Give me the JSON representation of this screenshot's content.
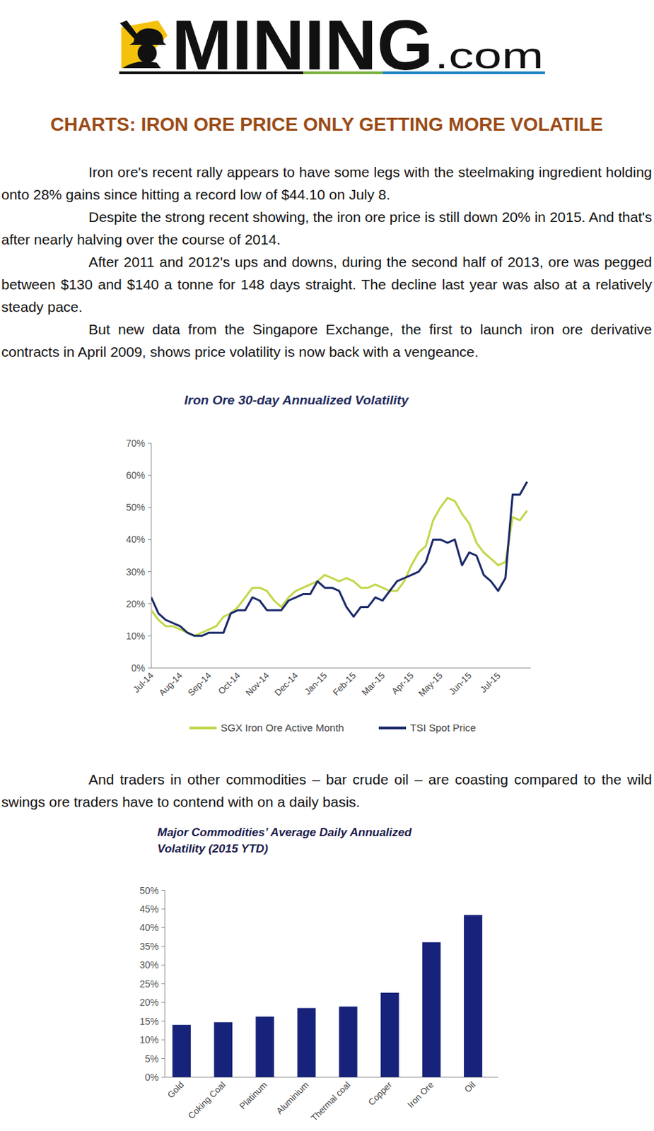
{
  "logo": {
    "text": "MINING",
    "suffix": ".com"
  },
  "title": "CHARTS: IRON ORE PRICE ONLY GETTING MORE VOLATILE",
  "paragraphs": [
    "Iron ore's recent rally appears to have some legs with the steelmaking ingredient holding onto 28% gains since hitting a record low of $44.10 on July 8.",
    "Despite the strong recent showing, the iron ore price is still down 20% in 2015. And that's after nearly halving over the course of 2014.",
    "After 2011 and 2012's ups and downs, during the second half of 2013, ore was pegged between $130 and $140 a tonne for 148 days straight. The decline last year was also at a relatively steady pace.",
    "But new data from the Singapore Exchange, the first to launch iron ore derivative contracts in April 2009, shows price volatility is now back with a vengeance."
  ],
  "closing_paragraph": "And traders in other commodities – bar crude oil – are coasting compared to the wild swings ore traders have to contend with on a daily basis.",
  "chart_data": [
    {
      "type": "line",
      "title": "Iron Ore 30-day Annualized Volatility",
      "categories": [
        "Jul-14",
        null,
        null,
        null,
        "Aug-14",
        null,
        null,
        null,
        "Sep-14",
        null,
        null,
        null,
        "Oct-14",
        null,
        null,
        null,
        "Nov-14",
        null,
        null,
        null,
        "Dec-14",
        null,
        null,
        null,
        "Jan-15",
        null,
        null,
        null,
        "Feb-15",
        null,
        null,
        null,
        "Mar-15",
        null,
        null,
        null,
        "Apr-15",
        null,
        null,
        null,
        "May-15",
        null,
        null,
        null,
        "Jun-15",
        null,
        null,
        null,
        "Jul-15",
        null,
        null,
        null,
        null
      ],
      "series": [
        {
          "name": "SGX Iron Ore Active Month",
          "color": "#c3d64a",
          "values": [
            18,
            15,
            13,
            13,
            12,
            11,
            10,
            11,
            12,
            13,
            16,
            17,
            19,
            22,
            25,
            25,
            24,
            21,
            19,
            22,
            24,
            25,
            26,
            27,
            29,
            28,
            27,
            28,
            27,
            25,
            25,
            26,
            25,
            24,
            24,
            27,
            32,
            36,
            38,
            46,
            50,
            53,
            52,
            48,
            45,
            39,
            36,
            34,
            32,
            33,
            47,
            46,
            49
          ]
        },
        {
          "name": "TSI Spot Price",
          "color": "#1b2a6b",
          "values": [
            22,
            17,
            15,
            14,
            13,
            11,
            10,
            10,
            11,
            11,
            11,
            17,
            18,
            18,
            22,
            21,
            18,
            18,
            18,
            21,
            22,
            23,
            23,
            27,
            25,
            25,
            24,
            19,
            16,
            19,
            19,
            22,
            21,
            24,
            27,
            28,
            29,
            30,
            33,
            40,
            40,
            39,
            40,
            32,
            36,
            35,
            29,
            27,
            24,
            28,
            54,
            54,
            58
          ]
        }
      ],
      "ylim": [
        0,
        70
      ],
      "yticks": [
        {
          "value": 0,
          "label": "0%"
        },
        {
          "value": 10,
          "label": "10%"
        },
        {
          "value": 20,
          "label": "20%"
        },
        {
          "value": 30,
          "label": "30%"
        },
        {
          "value": 40,
          "label": "40%"
        },
        {
          "value": 50,
          "label": "50%"
        },
        {
          "value": 60,
          "label": "60%"
        },
        {
          "value": 70,
          "label": "70%"
        }
      ],
      "grid": false,
      "legend": "bottom"
    },
    {
      "type": "bar",
      "title": "Major Commodities’ Average Daily Annualized Volatility (2015 YTD)",
      "categories": [
        "Gold",
        "Coking Coal",
        "Platinum",
        "Aluminium",
        "Thermal coal",
        "Copper",
        "Iron Ore",
        "Oil"
      ],
      "values": [
        14,
        14.7,
        16.2,
        18.5,
        18.9,
        22.6,
        36.1,
        43.4
      ],
      "color": "#17237a",
      "ylim": [
        0,
        50
      ],
      "yticks": [
        {
          "value": 0,
          "label": "0%"
        },
        {
          "value": 5,
          "label": "5%"
        },
        {
          "value": 10,
          "label": "10%"
        },
        {
          "value": 15,
          "label": "15%"
        },
        {
          "value": 20,
          "label": "20%"
        },
        {
          "value": 25,
          "label": "25%"
        },
        {
          "value": 30,
          "label": "30%"
        },
        {
          "value": 35,
          "label": "35%"
        },
        {
          "value": 40,
          "label": "40%"
        },
        {
          "value": 45,
          "label": "45%"
        },
        {
          "value": 50,
          "label": "50%"
        }
      ],
      "grid": false
    }
  ]
}
